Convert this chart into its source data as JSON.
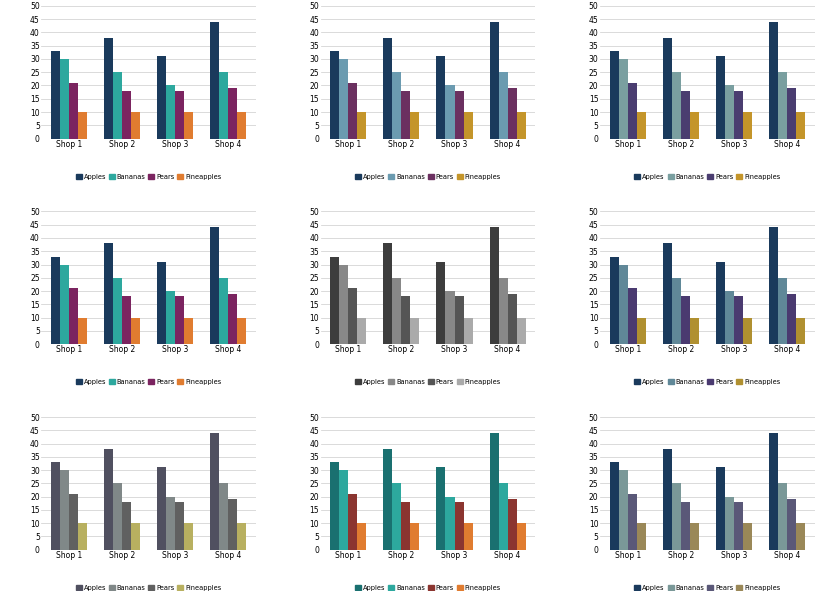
{
  "shops": [
    "Shop 1",
    "Shop 2",
    "Shop 3",
    "Shop 4"
  ],
  "categories": [
    "Apples",
    "Bananas",
    "Pears",
    "Pineapples"
  ],
  "values": {
    "Apples": [
      33,
      38,
      31,
      44
    ],
    "Bananas": [
      30,
      25,
      20,
      25
    ],
    "Pears": [
      21,
      18,
      18,
      19
    ],
    "Pineapples": [
      10,
      10,
      10,
      10
    ]
  },
  "color_schemes": [
    [
      "#1a3a5c",
      "#2da89e",
      "#7b2460",
      "#e07c30"
    ],
    [
      "#1a3a5c",
      "#6b9aac",
      "#6b2a5a",
      "#c4952a"
    ],
    [
      "#1a3a5c",
      "#7a9fa0",
      "#4a3d70",
      "#c4952a"
    ],
    [
      "#1a3a5c",
      "#2da89e",
      "#7b2460",
      "#e07c30"
    ],
    [
      "#3a3a3a",
      "#888888",
      "#555555",
      "#aaaaaa"
    ],
    [
      "#1a3a5c",
      "#608a94",
      "#4a3a68",
      "#b09030"
    ],
    [
      "#505060",
      "#888888",
      "#666666",
      "#c0b060"
    ],
    [
      "#1a6060",
      "#cc3333",
      "#cc3333",
      "#e07c30"
    ],
    [
      "#1a3a5c",
      "#7a9898",
      "#5a5878",
      "#9a8858"
    ]
  ],
  "legend_labels": [
    [
      "Apples",
      "Bananas",
      "Pears",
      "Pineapples"
    ],
    [
      "Apples",
      "Bananas",
      "Pears",
      "Pineapples"
    ],
    [
      "Apples",
      "Bananas",
      "Pears",
      "Pineapples"
    ],
    [
      "Apples",
      "Bananas",
      "Pears",
      "Pineapples"
    ],
    [
      "Apples",
      "Bananas",
      "Pears",
      "Pineapples"
    ],
    [
      "Apples",
      "Bananas",
      "Pears",
      "Pineapples"
    ],
    [
      "Apples",
      "Bananas",
      "Pears",
      "Pineapples"
    ],
    [
      "Apples",
      "Bananas",
      "Pears",
      "Pineapples"
    ],
    [
      "Apples",
      "Bananas",
      "Pears",
      "Pineapples"
    ]
  ]
}
